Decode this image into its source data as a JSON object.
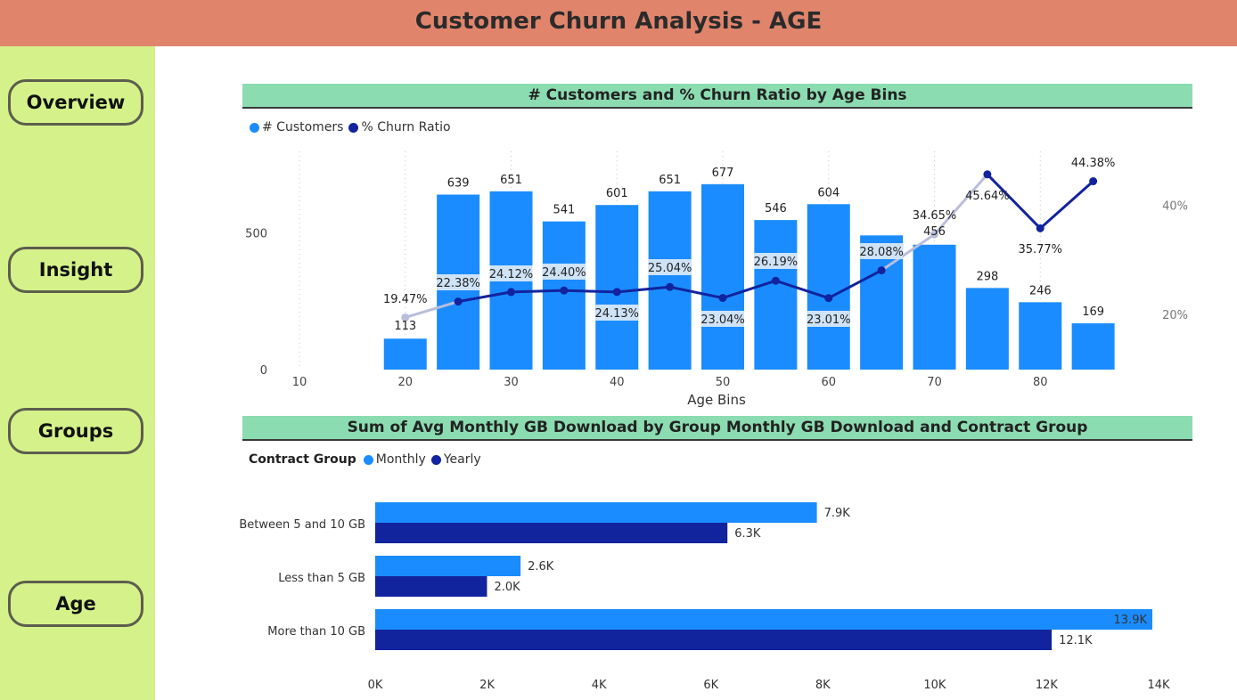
{
  "header": {
    "title": "Customer Churn Analysis - AGE",
    "color": "#e0856c"
  },
  "nav": {
    "items": [
      {
        "label": "Overview"
      },
      {
        "label": "Insight"
      },
      {
        "label": "Groups"
      },
      {
        "label": "Age"
      }
    ],
    "color": "#d5f28a"
  },
  "colors": {
    "primary": "#1a8cff",
    "secondary": "#12239e",
    "header_band": "#8cdcb1"
  },
  "chart_data": [
    {
      "type": "bar+line",
      "title": "# Customers and % Churn Ratio by Age Bins",
      "legend": [
        {
          "name": "# Customers",
          "color": "#1a8cff"
        },
        {
          "name": "% Churn Ratio",
          "color": "#12239e"
        }
      ],
      "legend_position": "top-left",
      "xlabel": "Age Bins",
      "x_ticks": [
        10,
        20,
        30,
        40,
        50,
        60,
        70,
        80
      ],
      "y_ticks": [
        0,
        500
      ],
      "y2_ticks": [
        "20%",
        "40%"
      ],
      "ylim": [
        0,
        760
      ],
      "y2lim": [
        0,
        0.52
      ],
      "x": [
        20,
        25,
        30,
        35,
        40,
        45,
        50,
        55,
        60,
        65,
        70,
        75,
        80,
        85
      ],
      "customers": [
        113,
        639,
        651,
        541,
        601,
        651,
        677,
        546,
        604,
        490,
        456,
        298,
        246,
        169
      ],
      "customers_labels": [
        "113",
        "639",
        "651",
        "541",
        "601",
        "651",
        "677",
        "546",
        "604",
        "",
        "456",
        "298",
        "246",
        "169"
      ],
      "churn_ratio": [
        0.1947,
        0.2238,
        0.2412,
        0.244,
        0.2413,
        0.2504,
        0.2304,
        0.2619,
        0.2301,
        0.2808,
        0.3465,
        0.4564,
        0.3577,
        0.4438
      ],
      "churn_labels": [
        "19.47%",
        "22.38%",
        "24.12%",
        "24.40%",
        "24.13%",
        "25.04%",
        "23.04%",
        "26.19%",
        "23.01%",
        "28.08%",
        "34.65%",
        "45.64%",
        "35.77%",
        "44.38%"
      ],
      "grid": "vertical-dotted"
    },
    {
      "type": "bar",
      "orientation": "horizontal",
      "title": "Sum of Avg Monthly GB Download by Group Monthly GB Download and Contract Group",
      "legend_title": "Contract Group",
      "legend_position": "top-left",
      "categories": [
        "Between 5 and 10 GB",
        "Less than 5 GB",
        "More than 10 GB"
      ],
      "series": [
        {
          "name": "Monthly",
          "color": "#1a8cff",
          "values": [
            7900,
            2600,
            13900
          ],
          "labels": [
            "7.9K",
            "2.6K",
            "13.9K"
          ]
        },
        {
          "name": "Yearly",
          "color": "#12239e",
          "values": [
            6300,
            2000,
            12100
          ],
          "labels": [
            "6.3K",
            "2.0K",
            "12.1K"
          ]
        }
      ],
      "xlim": [
        0,
        14000
      ],
      "x_ticks": [
        "0K",
        "2K",
        "4K",
        "6K",
        "8K",
        "10K",
        "12K",
        "14K"
      ]
    }
  ]
}
